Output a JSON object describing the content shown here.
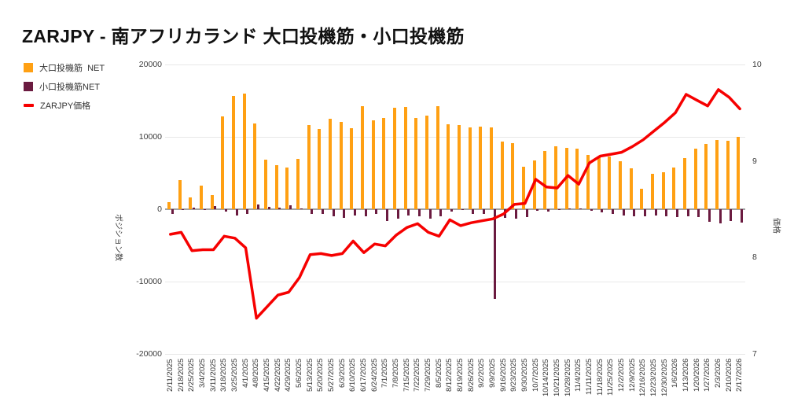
{
  "page": {
    "title": "ZARJPY - 南アフリカランド 大口投機筋・小口投機筋"
  },
  "chart_data": {
    "type": "bar+line",
    "title": "ZARJPY - 南アフリカランド 大口投機筋・小口投機筋",
    "grid": true,
    "legend_position": "top-left",
    "categories": [
      "2/11/2025",
      "2/18/2025",
      "2/25/2025",
      "3/4/2025",
      "3/11/2025",
      "3/18/2025",
      "3/25/2025",
      "4/1/2025",
      "4/8/2025",
      "4/15/2025",
      "4/22/2025",
      "4/29/2025",
      "5/6/2025",
      "5/13/2025",
      "5/20/2025",
      "5/27/2025",
      "6/3/2025",
      "6/10/2025",
      "6/17/2025",
      "6/24/2025",
      "7/1/2025",
      "7/8/2025",
      "7/15/2025",
      "7/22/2025",
      "7/29/2025",
      "8/5/2025",
      "8/12/2025",
      "8/19/2025",
      "8/26/2025",
      "9/2/2025",
      "9/9/2025",
      "9/16/2025",
      "9/23/2025",
      "9/30/2025",
      "10/7/2025",
      "10/14/2025",
      "10/21/2025",
      "10/28/2025",
      "11/4/2025",
      "11/11/2025",
      "11/18/2025",
      "11/25/2025",
      "12/2/2025",
      "12/9/2025",
      "12/16/2025",
      "12/23/2025",
      "12/30/2025",
      "1/6/2026",
      "1/13/2026",
      "1/20/2026",
      "1/27/2026",
      "2/3/2026",
      "2/10/2026",
      "2/17/2026"
    ],
    "series": [
      {
        "name": "大口投機筋  NET",
        "type": "bar",
        "axis": "left",
        "color": "#ffa013",
        "values": [
          1000,
          4000,
          1600,
          3300,
          2000,
          12800,
          15700,
          16000,
          11800,
          6800,
          6100,
          5800,
          7000,
          11600,
          11100,
          12500,
          12100,
          11200,
          14200,
          12300,
          12600,
          14000,
          14100,
          12600,
          12900,
          14200,
          11700,
          11600,
          11300,
          11400,
          11300,
          9400,
          9100,
          5900,
          6700,
          8000,
          8700,
          8450,
          8350,
          7450,
          7250,
          7250,
          6600,
          5650,
          2850,
          4900,
          5100,
          5800,
          7100,
          8350,
          9000,
          9600,
          9450,
          9950
        ]
      },
      {
        "name": "小口投機筋NET",
        "type": "bar",
        "axis": "left",
        "color": "#6b1b40",
        "values": [
          -700,
          -100,
          200,
          -50,
          400,
          -350,
          -900,
          -650,
          600,
          350,
          250,
          500,
          150,
          -650,
          -700,
          -1000,
          -1200,
          -850,
          -950,
          -700,
          -1650,
          -1250,
          -850,
          -1000,
          -1300,
          -950,
          -300,
          -150,
          -600,
          -650,
          -12400,
          -1200,
          -1300,
          -1100,
          -200,
          -300,
          -150,
          150,
          100,
          -200,
          -400,
          -650,
          -850,
          -950,
          -1000,
          -850,
          -1000,
          -1100,
          -1000,
          -1100,
          -1700,
          -1950,
          -1600,
          -1800
        ]
      },
      {
        "name": "ZARJPY価格",
        "type": "line",
        "axis": "right",
        "color": "#f60000",
        "values": [
          8.24,
          8.26,
          8.07,
          8.08,
          8.08,
          8.22,
          8.2,
          8.1,
          7.37,
          7.49,
          7.61,
          7.64,
          7.79,
          8.03,
          8.04,
          8.02,
          8.04,
          8.17,
          8.05,
          8.14,
          8.12,
          8.23,
          8.31,
          8.35,
          8.26,
          8.22,
          8.39,
          8.33,
          8.36,
          8.38,
          8.4,
          8.45,
          8.55,
          8.56,
          8.81,
          8.73,
          8.72,
          8.85,
          8.76,
          8.98,
          9.05,
          9.07,
          9.09,
          9.15,
          9.22,
          9.31,
          9.4,
          9.5,
          9.69,
          9.63,
          9.57,
          9.74,
          9.66,
          9.54
        ]
      }
    ],
    "left_axis": {
      "title": "ポジション数",
      "range": [
        -20000,
        20000
      ],
      "ticks": [
        {
          "label": "20000",
          "value": 20000
        },
        {
          "label": "10000",
          "value": 10000
        },
        {
          "label": "0",
          "value": 0
        },
        {
          "label": "-10000",
          "value": -10000
        },
        {
          "label": "-20000",
          "value": -20000
        }
      ]
    },
    "right_axis": {
      "title": "価格",
      "range": [
        7,
        10
      ],
      "ticks": [
        {
          "label": "10",
          "value": 10
        },
        {
          "label": "9",
          "value": 9
        },
        {
          "label": "8",
          "value": 8
        },
        {
          "label": "7",
          "value": 7
        }
      ]
    }
  }
}
